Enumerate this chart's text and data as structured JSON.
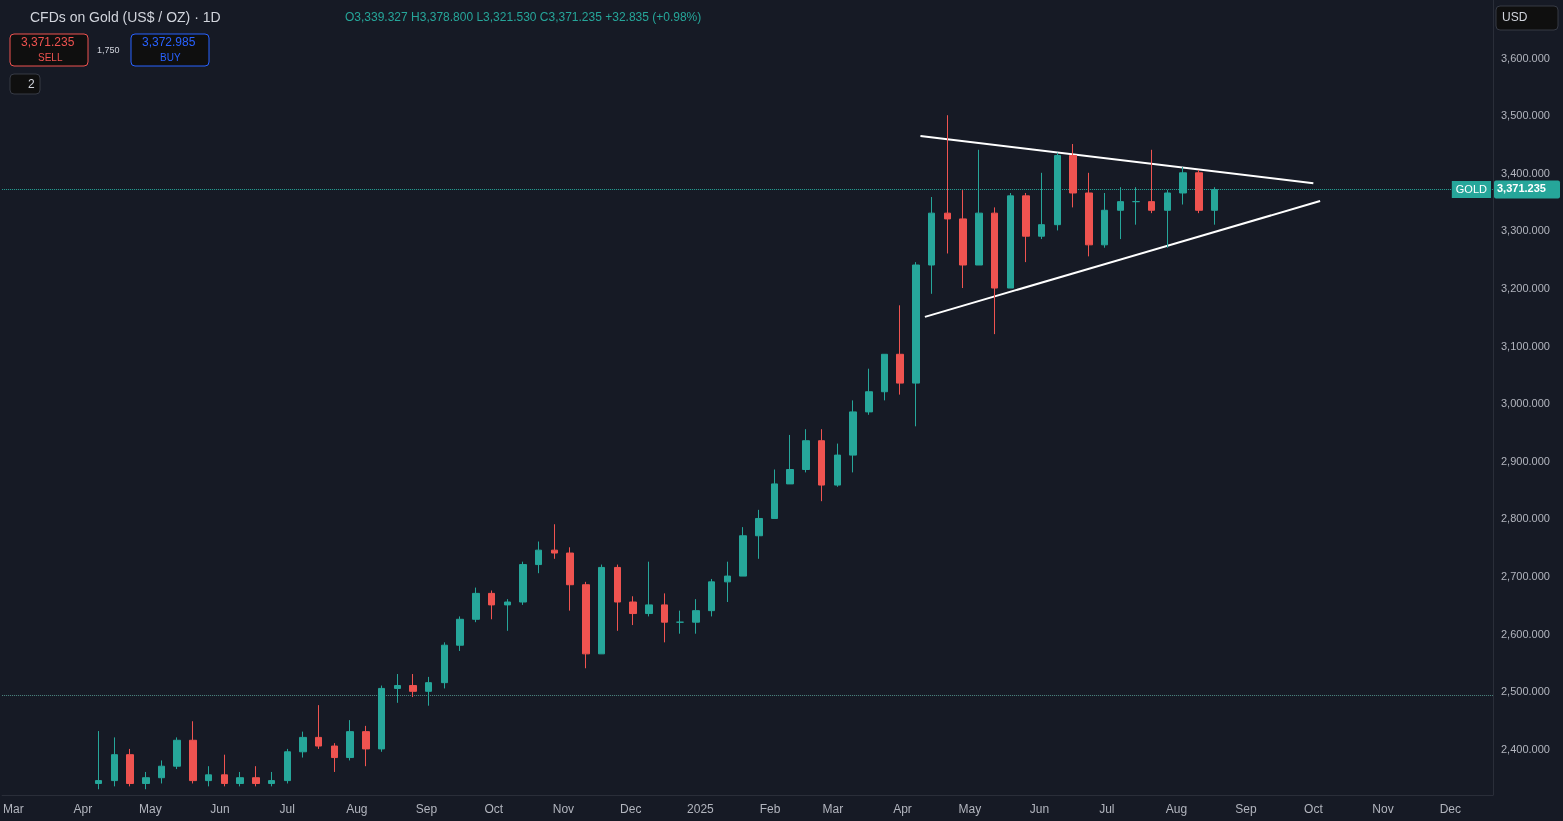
{
  "chart_data": {
    "type": "candlestick",
    "title": "CFDs on Gold (US$ / OZ) · 1D",
    "annotations": [
      "O3,339.327 H3,378.800 L3,321.530 C3,371.235 +32.835 (+0.98%)",
      "3,371.235",
      "SELL",
      "1,750",
      "3,372.985",
      "BUY",
      "2",
      "USD",
      "3,371.235"
    ],
    "x": [
      "2024-04-08",
      "2024-04-15",
      "2024-04-22",
      "2024-04-29",
      "2024-05-06",
      "2024-05-13",
      "2024-05-20",
      "2024-05-27",
      "2024-06-03",
      "2024-06-10",
      "2024-06-17",
      "2024-06-24",
      "2024-07-01",
      "2024-07-08",
      "2024-07-15",
      "2024-07-22",
      "2024-07-29",
      "2024-08-05",
      "2024-08-12",
      "2024-08-19",
      "2024-08-26",
      "2024-09-02",
      "2024-09-09",
      "2024-09-16",
      "2024-09-23",
      "2024-09-30",
      "2024-10-07",
      "2024-10-14",
      "2024-10-21",
      "2024-10-28",
      "2024-11-04",
      "2024-11-11",
      "2024-11-18",
      "2024-11-25",
      "2024-12-02",
      "2024-12-09",
      "2024-12-16",
      "2024-12-23",
      "2024-12-30",
      "2025-01-06",
      "2025-01-13",
      "2025-01-20",
      "2025-01-27",
      "2025-02-03",
      "2025-02-10",
      "2025-02-17",
      "2025-02-24",
      "2025-03-03",
      "2025-03-10",
      "2025-03-17",
      "2025-03-24",
      "2025-03-31",
      "2025-04-07",
      "2025-04-14",
      "2025-04-21",
      "2025-04-28",
      "2025-05-05",
      "2025-05-12",
      "2025-05-19",
      "2025-05-26",
      "2025-06-02",
      "2025-06-09",
      "2025-06-16",
      "2025-06-23",
      "2025-06-30",
      "2025-07-07",
      "2025-07-14",
      "2025-07-21",
      "2025-07-28",
      "2025-08-04",
      "2025-08-11",
      "2025-08-18"
    ],
    "ohlc": [
      [
        2340,
        2431,
        2330,
        2345
      ],
      [
        2345,
        2420,
        2335,
        2390
      ],
      [
        2390,
        2400,
        2335,
        2340
      ],
      [
        2340,
        2360,
        2330,
        2350
      ],
      [
        2350,
        2380,
        2340,
        2370
      ],
      [
        2370,
        2420,
        2365,
        2415
      ],
      [
        2415,
        2448,
        2340,
        2345
      ],
      [
        2345,
        2370,
        2335,
        2355
      ],
      [
        2355,
        2390,
        2335,
        2340
      ],
      [
        2340,
        2360,
        2335,
        2350
      ],
      [
        2350,
        2370,
        2335,
        2340
      ],
      [
        2340,
        2360,
        2335,
        2345
      ],
      [
        2345,
        2400,
        2340,
        2395
      ],
      [
        2395,
        2430,
        2385,
        2420
      ],
      [
        2420,
        2476,
        2400,
        2405
      ],
      [
        2405,
        2410,
        2360,
        2385
      ],
      [
        2385,
        2450,
        2380,
        2430
      ],
      [
        2430,
        2440,
        2370,
        2400
      ],
      [
        2400,
        2510,
        2395,
        2505
      ],
      [
        2505,
        2530,
        2480,
        2510
      ],
      [
        2510,
        2530,
        2490,
        2500
      ],
      [
        2500,
        2525,
        2475,
        2515
      ],
      [
        2515,
        2585,
        2505,
        2580
      ],
      [
        2580,
        2630,
        2570,
        2625
      ],
      [
        2625,
        2680,
        2620,
        2670
      ],
      [
        2670,
        2675,
        2625,
        2650
      ],
      [
        2650,
        2660,
        2605,
        2655
      ],
      [
        2655,
        2725,
        2650,
        2720
      ],
      [
        2720,
        2760,
        2705,
        2745
      ],
      [
        2745,
        2790,
        2730,
        2740
      ],
      [
        2740,
        2750,
        2640,
        2685
      ],
      [
        2685,
        2690,
        2540,
        2565
      ],
      [
        2565,
        2720,
        2565,
        2715
      ],
      [
        2715,
        2720,
        2605,
        2655
      ],
      [
        2655,
        2665,
        2615,
        2635
      ],
      [
        2635,
        2725,
        2630,
        2650
      ],
      [
        2650,
        2670,
        2585,
        2620
      ],
      [
        2620,
        2640,
        2600,
        2620
      ],
      [
        2620,
        2660,
        2600,
        2640
      ],
      [
        2640,
        2695,
        2630,
        2690
      ],
      [
        2690,
        2725,
        2655,
        2700
      ],
      [
        2700,
        2785,
        2700,
        2770
      ],
      [
        2770,
        2815,
        2730,
        2800
      ],
      [
        2800,
        2885,
        2800,
        2860
      ],
      [
        2860,
        2945,
        2860,
        2885
      ],
      [
        2885,
        2955,
        2880,
        2935
      ],
      [
        2935,
        2955,
        2830,
        2858
      ],
      [
        2858,
        2930,
        2855,
        2910
      ],
      [
        2910,
        3005,
        2880,
        2985
      ],
      [
        2985,
        3060,
        2980,
        3020
      ],
      [
        3020,
        3085,
        3005,
        3085
      ],
      [
        3085,
        3170,
        3015,
        3035
      ],
      [
        3035,
        3245,
        2960,
        3240
      ],
      [
        3240,
        3358,
        3190,
        3330
      ],
      [
        3330,
        3500,
        3260,
        3320
      ],
      [
        3320,
        3370,
        3200,
        3240
      ],
      [
        3240,
        3440,
        3240,
        3330
      ],
      [
        3330,
        3340,
        3120,
        3200
      ],
      [
        3200,
        3365,
        3200,
        3360
      ],
      [
        3360,
        3365,
        3245,
        3290
      ],
      [
        3290,
        3400,
        3285,
        3310
      ],
      [
        3310,
        3435,
        3300,
        3430
      ],
      [
        3430,
        3450,
        3340,
        3365
      ],
      [
        3365,
        3400,
        3255,
        3275
      ],
      [
        3275,
        3365,
        3270,
        3335
      ],
      [
        3335,
        3375,
        3285,
        3350
      ],
      [
        3350,
        3375,
        3310,
        3350
      ],
      [
        3350,
        3440,
        3330,
        3335
      ],
      [
        3335,
        3370,
        3270,
        3365
      ],
      [
        3365,
        3410,
        3345,
        3400
      ],
      [
        3400,
        3405,
        3330,
        3335
      ],
      [
        3335,
        3375,
        3310,
        3371
      ]
    ],
    "series": [
      {
        "type": "line",
        "x": [
          "2025-04-09",
          "2025-10-01"
        ],
        "values": [
          3464,
          3382
        ],
        "color": "#ffffff"
      },
      {
        "type": "line",
        "x": [
          "2025-04-11",
          "2025-10-04"
        ],
        "values": [
          3150,
          3351
        ],
        "color": "#ffffff"
      }
    ],
    "ref_lines": [
      {
        "axis": "y",
        "value": 3371.235,
        "label": "GOLD",
        "color": "#26a69a",
        "line_style": "dotted"
      },
      {
        "axis": "y",
        "value": 2494,
        "label": null,
        "color": "#4e8a85",
        "line_style": "dotted"
      }
    ],
    "xlim": [
      "2024-02-25",
      "2025-12-20"
    ],
    "xticks": [
      {
        "value": "2024-03-01",
        "label": "Mar"
      },
      {
        "value": "2024-04-01",
        "label": "Apr"
      },
      {
        "value": "2024-05-01",
        "label": "May"
      },
      {
        "value": "2024-06-01",
        "label": "Jun"
      },
      {
        "value": "2024-07-01",
        "label": "Jul"
      },
      {
        "value": "2024-08-01",
        "label": "Aug"
      },
      {
        "value": "2024-09-01",
        "label": "Sep"
      },
      {
        "value": "2024-10-01",
        "label": "Oct"
      },
      {
        "value": "2024-11-01",
        "label": "Nov"
      },
      {
        "value": "2024-12-01",
        "label": "Dec"
      },
      {
        "value": "2025-01-01",
        "label": "2025"
      },
      {
        "value": "2025-02-01",
        "label": "Feb"
      },
      {
        "value": "2025-03-01",
        "label": "Mar"
      },
      {
        "value": "2025-04-01",
        "label": "Apr"
      },
      {
        "value": "2025-05-01",
        "label": "May"
      },
      {
        "value": "2025-06-01",
        "label": "Jun"
      },
      {
        "value": "2025-07-01",
        "label": "Jul"
      },
      {
        "value": "2025-08-01",
        "label": "Aug"
      },
      {
        "value": "2025-09-01",
        "label": "Sep"
      },
      {
        "value": "2025-10-01",
        "label": "Oct"
      },
      {
        "value": "2025-11-01",
        "label": "Nov"
      },
      {
        "value": "2025-12-01",
        "label": "Dec"
      }
    ],
    "ylim": [
      2320,
      3700
    ],
    "yticks": [
      {
        "value": 2400,
        "label": "2,400.000"
      },
      {
        "value": 2500,
        "label": "2,500.000"
      },
      {
        "value": 2600,
        "label": "2,600.000"
      },
      {
        "value": 2700,
        "label": "2,700.000"
      },
      {
        "value": 2800,
        "label": "2,800.000"
      },
      {
        "value": 2900,
        "label": "2,900.000"
      },
      {
        "value": 3000,
        "label": "3,000.000"
      },
      {
        "value": 3100,
        "label": "3,100.000"
      },
      {
        "value": 3200,
        "label": "3,200.000"
      },
      {
        "value": 3300,
        "label": "3,300.000"
      },
      {
        "value": 3400,
        "label": "3,400.000"
      },
      {
        "value": 3500,
        "label": "3,500.000"
      },
      {
        "value": 3600,
        "label": "3,600.000"
      }
    ],
    "grid": false
  }
}
